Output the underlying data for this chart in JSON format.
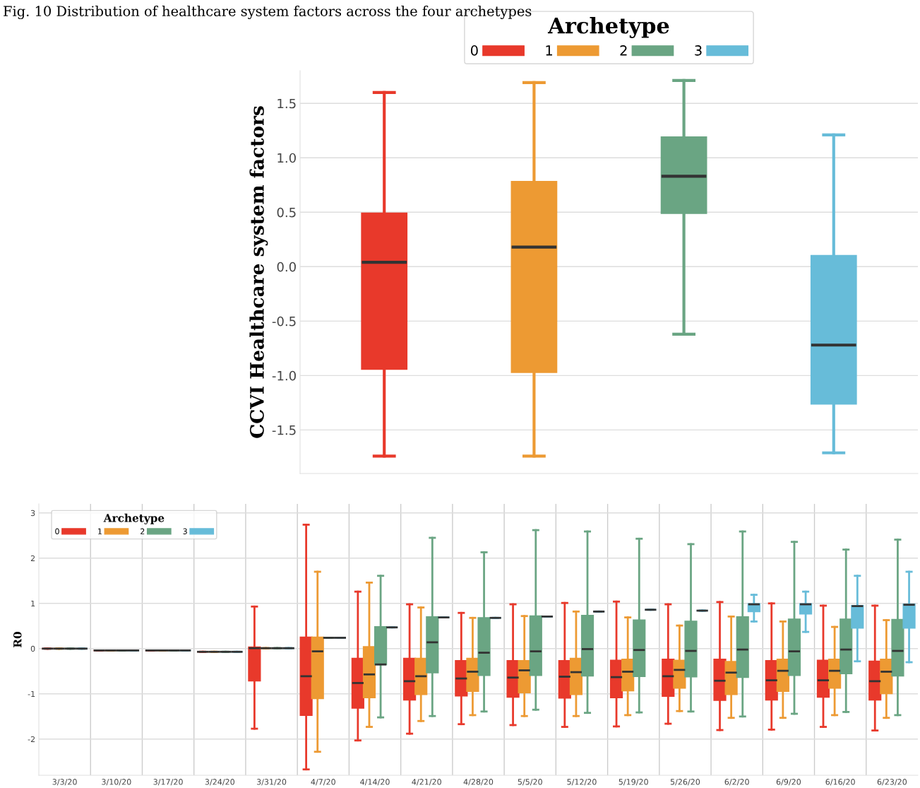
{
  "chart_data": [
    {
      "type": "box",
      "ylabel": "CCVI Healthcare system factors",
      "legend_title": "Archetype",
      "legend": "top",
      "grid": "y",
      "annotations": [
        "Fig. 10 Distribution of healthcare system factors across the four archetypes"
      ],
      "categories": [
        null
      ],
      "ylim": [
        -1.9,
        1.8
      ],
      "yticks": [
        {
          "value": -1.5,
          "label": "-1.5"
        },
        {
          "value": -1,
          "label": "-1.0"
        },
        {
          "value": -0.5,
          "label": "-0.5"
        },
        {
          "value": 0,
          "label": "0.0"
        },
        {
          "value": 0.5,
          "label": "0.5"
        },
        {
          "value": 1,
          "label": "1.0"
        },
        {
          "value": 1.5,
          "label": "1.5"
        }
      ],
      "series": [
        {
          "name": "0",
          "color": "#e8392b",
          "boxes": [
            {
              "low": -1.74,
              "q1": -0.94,
              "median": 0.04,
              "q3": 0.49,
              "high": 1.6
            }
          ]
        },
        {
          "name": "1",
          "color": "#ed9a33",
          "boxes": [
            {
              "low": -1.74,
              "q1": -0.97,
              "median": 0.18,
              "q3": 0.78,
              "high": 1.69
            }
          ]
        },
        {
          "name": "2",
          "color": "#6aa583",
          "boxes": [
            {
              "low": -0.62,
              "q1": 0.49,
              "median": 0.83,
              "q3": 1.19,
              "high": 1.71
            }
          ]
        },
        {
          "name": "3",
          "color": "#67bcd9",
          "boxes": [
            {
              "low": -1.71,
              "q1": -1.26,
              "median": -0.72,
              "q3": 0.1,
              "high": 1.21
            }
          ]
        }
      ]
    },
    {
      "type": "box",
      "ylabel": "R0",
      "legend_title": "Archetype",
      "legend": "top left",
      "grid": true,
      "categories": [
        "3/3/20",
        "3/10/20",
        "3/17/20",
        "3/24/20",
        "3/31/20",
        "4/7/20",
        "4/14/20",
        "4/21/20",
        "4/28/20",
        "5/5/20",
        "5/12/20",
        "5/19/20",
        "5/26/20",
        "6/2/20",
        "6/9/20",
        "6/16/20",
        "6/23/20"
      ],
      "ylim": [
        -2.8,
        3.2
      ],
      "yticks": [
        -2,
        -1,
        0,
        1,
        2,
        3
      ],
      "series": [
        {
          "name": "0",
          "color": "#e8392b",
          "boxes": [
            {
              "low": 0,
              "q1": 0,
              "median": 0,
              "q3": 0,
              "high": 0
            },
            {
              "low": -0.04,
              "q1": -0.04,
              "median": -0.04,
              "q3": -0.04,
              "high": -0.04
            },
            {
              "low": -0.04,
              "q1": -0.04,
              "median": -0.04,
              "q3": -0.04,
              "high": -0.04
            },
            {
              "low": -0.07,
              "q1": -0.07,
              "median": -0.07,
              "q3": -0.07,
              "high": -0.07
            },
            {
              "low": -1.77,
              "q1": -0.71,
              "median": 0.01,
              "q3": 0.03,
              "high": 0.93
            },
            {
              "low": -2.67,
              "q1": -1.47,
              "median": -0.61,
              "q3": 0.25,
              "high": 2.74
            },
            {
              "low": -2.03,
              "q1": -1.31,
              "median": -0.76,
              "q3": -0.22,
              "high": 1.26
            },
            {
              "low": -1.88,
              "q1": -1.13,
              "median": -0.72,
              "q3": -0.22,
              "high": 0.98
            },
            {
              "low": -1.67,
              "q1": -1.04,
              "median": -0.66,
              "q3": -0.27,
              "high": 0.79
            },
            {
              "low": -1.69,
              "q1": -1.07,
              "median": -0.64,
              "q3": -0.27,
              "high": 0.98
            },
            {
              "low": -1.73,
              "q1": -1.09,
              "median": -0.62,
              "q3": -0.27,
              "high": 1.01
            },
            {
              "low": -1.72,
              "q1": -1.08,
              "median": -0.63,
              "q3": -0.26,
              "high": 1.04
            },
            {
              "low": -1.66,
              "q1": -1.05,
              "median": -0.61,
              "q3": -0.24,
              "high": 0.98
            },
            {
              "low": -1.8,
              "q1": -1.14,
              "median": -0.71,
              "q3": -0.24,
              "high": 1.03
            },
            {
              "low": -1.79,
              "q1": -1.13,
              "median": -0.7,
              "q3": -0.27,
              "high": 1.0
            },
            {
              "low": -1.73,
              "q1": -1.07,
              "median": -0.7,
              "q3": -0.26,
              "high": 0.95
            },
            {
              "low": -1.81,
              "q1": -1.13,
              "median": -0.72,
              "q3": -0.28,
              "high": 0.95
            }
          ]
        },
        {
          "name": "1",
          "color": "#ed9a33",
          "boxes": [
            {
              "low": 0,
              "q1": 0,
              "median": 0,
              "q3": 0,
              "high": 0
            },
            {
              "low": -0.04,
              "q1": -0.04,
              "median": -0.04,
              "q3": -0.04,
              "high": -0.04
            },
            {
              "low": -0.04,
              "q1": -0.04,
              "median": -0.04,
              "q3": -0.04,
              "high": -0.04
            },
            {
              "low": -0.07,
              "q1": -0.07,
              "median": -0.07,
              "q3": -0.07,
              "high": -0.07
            },
            {
              "low": 0.01,
              "q1": 0.01,
              "median": 0.01,
              "q3": 0.01,
              "high": 0.01
            },
            {
              "low": -2.28,
              "q1": -1.1,
              "median": -0.06,
              "q3": 0.25,
              "high": 1.7
            },
            {
              "low": -1.73,
              "q1": -1.08,
              "median": -0.57,
              "q3": 0.04,
              "high": 1.46
            },
            {
              "low": -1.6,
              "q1": -1.01,
              "median": -0.61,
              "q3": -0.22,
              "high": 0.91
            },
            {
              "low": -1.47,
              "q1": -0.94,
              "median": -0.51,
              "q3": -0.22,
              "high": 0.68
            },
            {
              "low": -1.49,
              "q1": -0.97,
              "median": -0.48,
              "q3": -0.27,
              "high": 0.72
            },
            {
              "low": -1.49,
              "q1": -1.01,
              "median": -0.52,
              "q3": -0.22,
              "high": 0.82
            },
            {
              "low": -1.47,
              "q1": -0.93,
              "median": -0.51,
              "q3": -0.24,
              "high": 0.69
            },
            {
              "low": -1.38,
              "q1": -0.87,
              "median": -0.47,
              "q3": -0.26,
              "high": 0.51
            },
            {
              "low": -1.53,
              "q1": -1.01,
              "median": -0.53,
              "q3": -0.29,
              "high": 0.71
            },
            {
              "low": -1.53,
              "q1": -0.94,
              "median": -0.49,
              "q3": -0.24,
              "high": 0.6
            },
            {
              "low": -1.47,
              "q1": -0.87,
              "median": -0.49,
              "q3": -0.24,
              "high": 0.48
            },
            {
              "low": -1.53,
              "q1": -0.99,
              "median": -0.51,
              "q3": -0.24,
              "high": 0.63
            }
          ]
        },
        {
          "name": "2",
          "color": "#6aa583",
          "boxes": [
            {
              "low": 0,
              "q1": 0,
              "median": 0,
              "q3": 0,
              "high": 0
            },
            {
              "low": -0.04,
              "q1": -0.04,
              "median": -0.04,
              "q3": -0.04,
              "high": -0.04
            },
            {
              "low": -0.04,
              "q1": -0.04,
              "median": -0.04,
              "q3": -0.04,
              "high": -0.04
            },
            {
              "low": -0.07,
              "q1": -0.07,
              "median": -0.07,
              "q3": -0.07,
              "high": -0.07
            },
            {
              "low": 0.01,
              "q1": 0.01,
              "median": 0.01,
              "q3": 0.01,
              "high": 0.01
            },
            {
              "low": 0.24,
              "q1": 0.24,
              "median": 0.24,
              "q3": 0.24,
              "high": 0.24
            },
            {
              "low": -1.52,
              "q1": -0.35,
              "median": -0.35,
              "q3": 0.48,
              "high": 1.61
            },
            {
              "low": -1.49,
              "q1": -0.53,
              "median": 0.14,
              "q3": 0.7,
              "high": 2.45
            },
            {
              "low": -1.39,
              "q1": -0.59,
              "median": -0.09,
              "q3": 0.68,
              "high": 2.13
            },
            {
              "low": -1.35,
              "q1": -0.59,
              "median": -0.06,
              "q3": 0.72,
              "high": 2.62
            },
            {
              "low": -1.42,
              "q1": -0.6,
              "median": -0.01,
              "q3": 0.73,
              "high": 2.59
            },
            {
              "low": -1.41,
              "q1": -0.61,
              "median": -0.03,
              "q3": 0.63,
              "high": 2.43
            },
            {
              "low": -1.39,
              "q1": -0.62,
              "median": -0.05,
              "q3": 0.6,
              "high": 2.31
            },
            {
              "low": -1.5,
              "q1": -0.63,
              "median": -0.02,
              "q3": 0.7,
              "high": 2.59
            },
            {
              "low": -1.44,
              "q1": -0.59,
              "median": -0.06,
              "q3": 0.65,
              "high": 2.36
            },
            {
              "low": -1.4,
              "q1": -0.55,
              "median": -0.02,
              "q3": 0.65,
              "high": 2.19
            },
            {
              "low": -1.47,
              "q1": -0.6,
              "median": -0.05,
              "q3": 0.64,
              "high": 2.41
            }
          ]
        },
        {
          "name": "3",
          "color": "#67bcd9",
          "boxes": [
            {
              "low": 0,
              "q1": 0,
              "median": 0,
              "q3": 0,
              "high": 0
            },
            {
              "low": -0.04,
              "q1": -0.04,
              "median": -0.04,
              "q3": -0.04,
              "high": -0.04
            },
            {
              "low": -0.04,
              "q1": -0.04,
              "median": -0.04,
              "q3": -0.04,
              "high": -0.04
            },
            {
              "low": -0.07,
              "q1": -0.07,
              "median": -0.07,
              "q3": -0.07,
              "high": -0.07
            },
            {
              "low": 0.01,
              "q1": 0.01,
              "median": 0.01,
              "q3": 0.01,
              "high": 0.01
            },
            {
              "low": 0.24,
              "q1": 0.24,
              "median": 0.24,
              "q3": 0.24,
              "high": 0.24
            },
            {
              "low": 0.47,
              "q1": 0.47,
              "median": 0.47,
              "q3": 0.47,
              "high": 0.47
            },
            {
              "low": 0.69,
              "q1": 0.69,
              "median": 0.69,
              "q3": 0.69,
              "high": 0.69
            },
            {
              "low": 0.68,
              "q1": 0.68,
              "median": 0.68,
              "q3": 0.68,
              "high": 0.68
            },
            {
              "low": 0.71,
              "q1": 0.71,
              "median": 0.71,
              "q3": 0.71,
              "high": 0.71
            },
            {
              "low": 0.82,
              "q1": 0.82,
              "median": 0.82,
              "q3": 0.82,
              "high": 0.82
            },
            {
              "low": 0.86,
              "q1": 0.86,
              "median": 0.86,
              "q3": 0.86,
              "high": 0.86
            },
            {
              "low": 0.84,
              "q1": 0.84,
              "median": 0.84,
              "q3": 0.84,
              "high": 0.84
            },
            {
              "low": 0.6,
              "q1": 0.82,
              "median": 0.98,
              "q3": 0.99,
              "high": 1.19
            },
            {
              "low": 0.37,
              "q1": 0.77,
              "median": 0.98,
              "q3": 0.99,
              "high": 1.26
            },
            {
              "low": -0.28,
              "q1": 0.46,
              "median": 0.94,
              "q3": 0.95,
              "high": 1.61
            },
            {
              "low": -0.3,
              "q1": 0.46,
              "median": 0.97,
              "q3": 0.98,
              "high": 1.7
            }
          ]
        }
      ]
    }
  ]
}
